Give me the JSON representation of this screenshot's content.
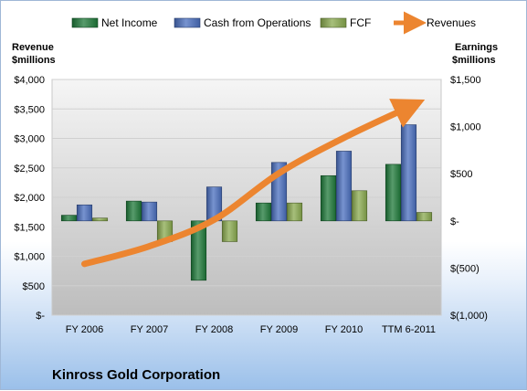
{
  "chart_data": {
    "type": "bar",
    "categories": [
      "FY 2006",
      "FY 2007",
      "FY 2008",
      "FY 2009",
      "FY 2010",
      "TTM 6-2011"
    ],
    "series": [
      {
        "name": "Net Income",
        "axis": "right",
        "color": "#1f7a3a",
        "values": [
          60,
          210,
          -630,
          190,
          480,
          600
        ]
      },
      {
        "name": "Cash from Operations",
        "axis": "right",
        "color": "#4a6fbf",
        "values": [
          170,
          200,
          360,
          620,
          740,
          1020
        ]
      },
      {
        "name": "FCF",
        "axis": "right",
        "color": "#8aaa4f",
        "values": [
          30,
          -220,
          -220,
          190,
          320,
          90
        ]
      },
      {
        "name": "Revenues",
        "axis": "left",
        "type": "line",
        "color": "#ec8530",
        "values": [
          870,
          1170,
          1620,
          2410,
          3010,
          3530
        ]
      }
    ],
    "left_axis": {
      "title_lines": [
        "Revenue",
        "$millions"
      ],
      "ylim": [
        0,
        4000
      ],
      "ticks": [
        0,
        500,
        1000,
        1500,
        2000,
        2500,
        3000,
        3500,
        4000
      ],
      "tick_labels": [
        "$-",
        "$500",
        "$1,000",
        "$1,500",
        "$2,000",
        "$2,500",
        "$3,000",
        "$3,500",
        "$4,000"
      ]
    },
    "right_axis": {
      "title_lines": [
        "Earnings",
        "$millions"
      ],
      "ylim": [
        -1000,
        1500
      ],
      "ticks": [
        -1000,
        -500,
        0,
        500,
        1000,
        1500
      ],
      "tick_labels": [
        "$(1,000)",
        "$(500)",
        "$-",
        "$500",
        "$1,000",
        "$1,500"
      ]
    },
    "legend": {
      "position": "top",
      "entries": [
        "Net Income",
        "Cash from Operations",
        "FCF",
        "Revenues"
      ]
    },
    "company": "Kinross Gold Corporation",
    "grid": true
  }
}
